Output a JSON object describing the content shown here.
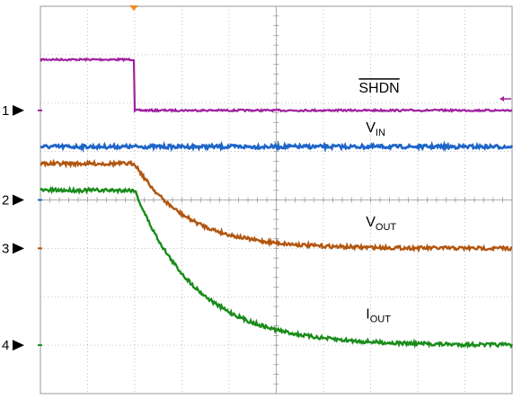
{
  "chart_data": {
    "type": "line",
    "title": "",
    "xlabel": "",
    "ylabel": "",
    "grid": true,
    "divisions": {
      "x": 10,
      "y": 8
    },
    "xlim": [
      0,
      10
    ],
    "ylim": [
      0,
      8
    ],
    "channel_markers": [
      {
        "label": "1",
        "color": "#a020a0"
      },
      {
        "label": "2",
        "color": "#1f66c8"
      },
      {
        "label": "3",
        "color": "#b2560f"
      },
      {
        "label": "4",
        "color": "#1a8c1a"
      }
    ],
    "series": [
      {
        "name": "SHDN",
        "overline": true,
        "color": "#a020a0",
        "high": 6.9,
        "low": 5.85,
        "edge_x": 2.0
      },
      {
        "name": "V",
        "subscript": "IN",
        "color": "#1f66c8",
        "level": 5.1
      },
      {
        "name": "V",
        "subscript": "OUT",
        "color": "#b2560f",
        "start": 4.75,
        "end": 3.0,
        "edge_x": 2.0,
        "tau": 1.1
      },
      {
        "name": "I",
        "subscript": "OUT",
        "color": "#1a8c1a",
        "start": 4.2,
        "end": 1.0,
        "edge_x": 2.0,
        "tau": 1.3
      }
    ]
  }
}
